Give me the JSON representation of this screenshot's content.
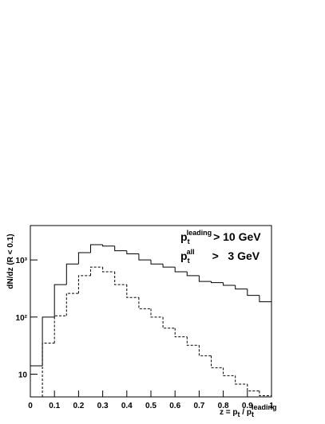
{
  "chart_data": {
    "type": "histogram",
    "ylabel": "dN/dz (R < 0.1)",
    "xlabel": {
      "p": "z = p",
      "sub1": "t",
      "mid": " / p",
      "sub2": "t",
      "sup": "leading"
    },
    "annotations": [
      {
        "p": "p",
        "sub": "t",
        "sup": "leading",
        "text": "> 10 GeV"
      },
      {
        "p": "p",
        "sub": "t",
        "sup": "all",
        "text": ">   3 GeV"
      }
    ],
    "bins": [
      0,
      0.05,
      0.1,
      0.15,
      0.2,
      0.25,
      0.3,
      0.35,
      0.4,
      0.45,
      0.5,
      0.55,
      0.6,
      0.65,
      0.7,
      0.75,
      0.8,
      0.85,
      0.9,
      0.95,
      1
    ],
    "series": [
      {
        "color": "#000000",
        "dash": false,
        "values": [
          14,
          100,
          370,
          850,
          1340,
          1850,
          1750,
          1450,
          1280,
          1000,
          850,
          750,
          620,
          530,
          420,
          400,
          360,
          310,
          240,
          185
        ]
      },
      {
        "color": "#000000",
        "dash": true,
        "values": [
          null,
          35,
          105,
          260,
          530,
          750,
          620,
          370,
          220,
          140,
          100,
          64,
          45,
          32,
          21,
          13,
          9.4,
          6.7,
          5.1,
          4.2
        ]
      }
    ],
    "xlim": [
      0,
      1
    ],
    "xticks": [
      0,
      0.1,
      0.2,
      0.3,
      0.4,
      0.5,
      0.6,
      0.7,
      0.8,
      0.9,
      1
    ],
    "ylim": [
      4,
      4000
    ],
    "log_y": true,
    "yticks": [
      10,
      {
        "value": 100,
        "label": "10²"
      },
      {
        "value": 1000,
        "label": "10³"
      }
    ]
  }
}
